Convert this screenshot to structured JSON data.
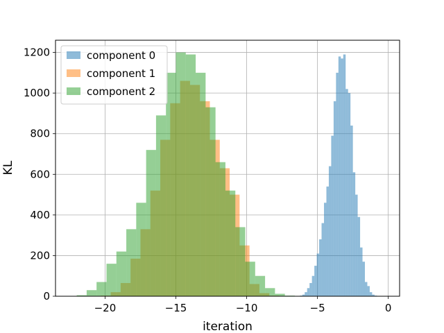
{
  "chart_data": {
    "type": "histogram",
    "xlabel": "iteration",
    "ylabel": "KL",
    "xlim": [
      -23.5,
      0.8
    ],
    "ylim": [
      0,
      1260
    ],
    "xticks": [
      -20,
      -15,
      -10,
      -5,
      0
    ],
    "yticks": [
      0,
      200,
      400,
      600,
      800,
      1000,
      1200
    ],
    "grid": true,
    "legend_position": "top-left",
    "series": [
      {
        "name": "component 0",
        "color": "#1f77b4",
        "bins": [
          [
            -6.24,
            -6.07,
            3
          ],
          [
            -6.07,
            -5.9,
            8
          ],
          [
            -5.9,
            -5.73,
            20
          ],
          [
            -5.73,
            -5.56,
            40
          ],
          [
            -5.56,
            -5.39,
            65
          ],
          [
            -5.39,
            -5.22,
            100
          ],
          [
            -5.22,
            -5.05,
            150
          ],
          [
            -5.05,
            -4.88,
            210
          ],
          [
            -4.88,
            -4.71,
            280
          ],
          [
            -4.71,
            -4.54,
            360
          ],
          [
            -4.54,
            -4.37,
            460
          ],
          [
            -4.37,
            -4.2,
            540
          ],
          [
            -4.2,
            -4.03,
            640
          ],
          [
            -4.03,
            -3.86,
            790
          ],
          [
            -3.86,
            -3.69,
            960
          ],
          [
            -3.69,
            -3.52,
            1100
          ],
          [
            -3.52,
            -3.35,
            1180
          ],
          [
            -3.35,
            -3.18,
            1170
          ],
          [
            -3.18,
            -3.01,
            1190
          ],
          [
            -3.01,
            -2.84,
            1020
          ],
          [
            -2.84,
            -2.67,
            1000
          ],
          [
            -2.67,
            -2.5,
            840
          ],
          [
            -2.5,
            -2.33,
            610
          ],
          [
            -2.33,
            -2.16,
            500
          ],
          [
            -2.16,
            -1.99,
            390
          ],
          [
            -1.99,
            -1.82,
            240
          ],
          [
            -1.82,
            -1.65,
            170
          ],
          [
            -1.65,
            -1.48,
            70
          ],
          [
            -1.48,
            -1.31,
            50
          ],
          [
            -1.31,
            -1.14,
            20
          ],
          [
            -1.14,
            -0.97,
            8
          ],
          [
            -0.97,
            -0.8,
            3
          ],
          [
            -0.8,
            -0.63,
            1
          ],
          [
            -0.63,
            -0.46,
            1
          ],
          [
            -0.46,
            -0.29,
            1
          ],
          [
            -0.29,
            -0.12,
            1
          ],
          [
            -0.12,
            0.05,
            1
          ]
        ]
      },
      {
        "name": "component 1",
        "color": "#ff7f0e",
        "bins": [
          [
            -20.3,
            -19.6,
            3
          ],
          [
            -19.6,
            -18.9,
            20
          ],
          [
            -18.9,
            -18.2,
            65
          ],
          [
            -18.2,
            -17.5,
            185
          ],
          [
            -17.5,
            -16.8,
            330
          ],
          [
            -16.8,
            -16.1,
            520
          ],
          [
            -16.1,
            -15.4,
            770
          ],
          [
            -15.4,
            -14.7,
            950
          ],
          [
            -14.7,
            -14.0,
            1060
          ],
          [
            -14.0,
            -13.3,
            1040
          ],
          [
            -13.3,
            -12.6,
            960
          ],
          [
            -12.6,
            -11.9,
            770
          ],
          [
            -11.9,
            -11.2,
            630
          ],
          [
            -11.2,
            -10.5,
            500
          ],
          [
            -10.5,
            -9.8,
            250
          ],
          [
            -9.8,
            -9.1,
            60
          ],
          [
            -9.1,
            -8.4,
            15
          ],
          [
            -8.4,
            -7.7,
            3
          ]
        ]
      },
      {
        "name": "component 2",
        "color": "#2ca02c",
        "bins": [
          [
            -22.0,
            -21.3,
            5
          ],
          [
            -21.3,
            -20.6,
            30
          ],
          [
            -20.6,
            -19.9,
            70
          ],
          [
            -19.9,
            -19.2,
            160
          ],
          [
            -19.2,
            -18.5,
            220
          ],
          [
            -18.5,
            -17.8,
            330
          ],
          [
            -17.8,
            -17.1,
            460
          ],
          [
            -17.1,
            -16.4,
            720
          ],
          [
            -16.4,
            -15.7,
            890
          ],
          [
            -15.7,
            -15.0,
            1100
          ],
          [
            -15.0,
            -14.3,
            1200
          ],
          [
            -14.3,
            -13.6,
            1190
          ],
          [
            -13.6,
            -12.9,
            1100
          ],
          [
            -12.9,
            -12.2,
            930
          ],
          [
            -12.2,
            -11.5,
            660
          ],
          [
            -11.5,
            -10.8,
            520
          ],
          [
            -10.8,
            -10.1,
            340
          ],
          [
            -10.1,
            -9.4,
            170
          ],
          [
            -9.4,
            -8.7,
            100
          ],
          [
            -8.7,
            -8.0,
            40
          ],
          [
            -8.0,
            -7.3,
            12
          ],
          [
            -7.3,
            -6.6,
            3
          ]
        ]
      }
    ]
  }
}
